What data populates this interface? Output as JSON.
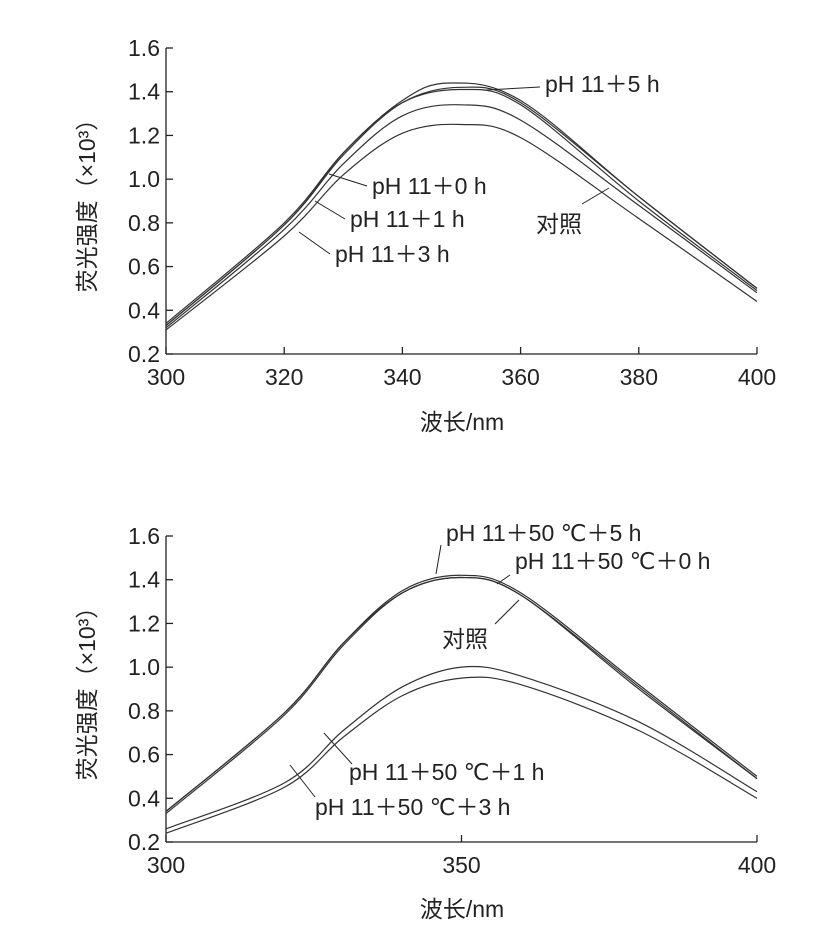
{
  "chart_data": [
    {
      "type": "line",
      "xlabel": "波长/nm",
      "ylabel": "荧光强度（×10³）",
      "xlim": [
        300,
        400
      ],
      "ylim": [
        0.2,
        1.6
      ],
      "xticks": [
        "300",
        "320",
        "340",
        "360",
        "380",
        "400"
      ],
      "yticks": [
        "0.2",
        "0.4",
        "0.6",
        "0.8",
        "1.0",
        "1.2",
        "1.4",
        "1.6"
      ],
      "grid": false,
      "series": [
        {
          "name": "pH 11＋5 h",
          "x": [
            300,
            320,
            330,
            340,
            348,
            360,
            380,
            400
          ],
          "y": [
            0.33,
            0.79,
            1.12,
            1.36,
            1.44,
            1.36,
            0.92,
            0.5
          ]
        },
        {
          "name": "pH 11＋0 h",
          "x": [
            300,
            320,
            330,
            340,
            350,
            360,
            380,
            400
          ],
          "y": [
            0.33,
            0.79,
            1.11,
            1.35,
            1.42,
            1.35,
            0.92,
            0.5
          ]
        },
        {
          "name": "pH 11＋1 h",
          "x": [
            300,
            320,
            330,
            340,
            350,
            360,
            380,
            400
          ],
          "y": [
            0.32,
            0.77,
            1.07,
            1.29,
            1.34,
            1.27,
            0.88,
            0.48
          ]
        },
        {
          "name": "pH 11＋3 h",
          "x": [
            300,
            320,
            330,
            340,
            350,
            360,
            380,
            400
          ],
          "y": [
            0.31,
            0.74,
            1.02,
            1.21,
            1.25,
            1.19,
            0.82,
            0.44
          ]
        },
        {
          "name": "对照",
          "x": [
            300,
            320,
            330,
            340,
            350,
            360,
            380,
            400
          ],
          "y": [
            0.34,
            0.8,
            1.12,
            1.35,
            1.41,
            1.34,
            0.9,
            0.49
          ]
        }
      ]
    },
    {
      "type": "line",
      "xlabel": "波长/nm",
      "ylabel": "荧光强度（×10³）",
      "xlim": [
        300,
        400
      ],
      "ylim": [
        0.2,
        1.6
      ],
      "xticks": [
        "300",
        "350",
        "400"
      ],
      "yticks": [
        "0.2",
        "0.4",
        "0.6",
        "0.8",
        "1.0",
        "1.2",
        "1.4",
        "1.6"
      ],
      "grid": false,
      "series": [
        {
          "name": "pH 11＋50 ℃＋5 h",
          "x": [
            300,
            320,
            330,
            340,
            350,
            360,
            380,
            400
          ],
          "y": [
            0.34,
            0.79,
            1.11,
            1.35,
            1.42,
            1.34,
            0.92,
            0.5
          ]
        },
        {
          "name": "pH 11＋50 ℃＋0 h",
          "x": [
            300,
            320,
            330,
            340,
            350,
            360,
            380,
            400
          ],
          "y": [
            0.33,
            0.78,
            1.1,
            1.34,
            1.41,
            1.33,
            0.9,
            0.49
          ]
        },
        {
          "name": "对照",
          "x": [
            300,
            320,
            330,
            340,
            350,
            360,
            380,
            400
          ],
          "y": [
            0.34,
            0.79,
            1.11,
            1.34,
            1.41,
            1.33,
            0.91,
            0.49
          ]
        },
        {
          "name": "pH 11＋50 ℃＋1 h",
          "x": [
            300,
            320,
            330,
            340,
            350,
            360,
            380,
            400
          ],
          "y": [
            0.26,
            0.47,
            0.71,
            0.91,
            1.0,
            0.96,
            0.75,
            0.43
          ]
        },
        {
          "name": "pH 11＋50 ℃＋3 h",
          "x": [
            300,
            320,
            330,
            340,
            350,
            360,
            380,
            400
          ],
          "y": [
            0.24,
            0.45,
            0.68,
            0.87,
            0.95,
            0.92,
            0.71,
            0.4
          ]
        }
      ]
    }
  ]
}
